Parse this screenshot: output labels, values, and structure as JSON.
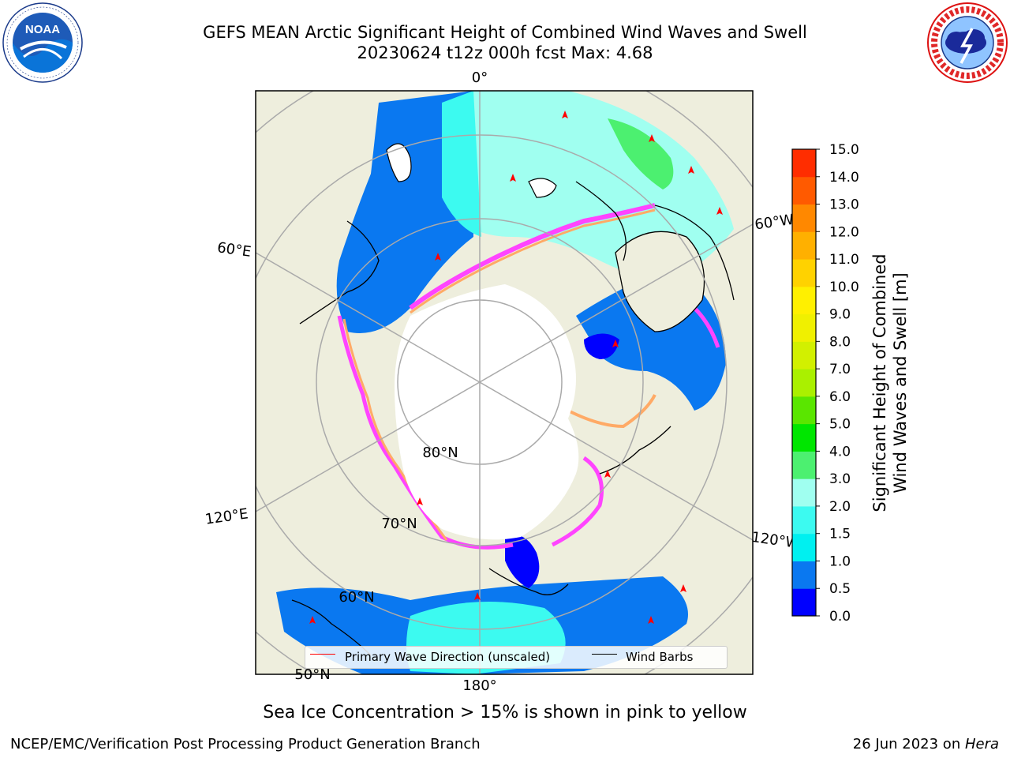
{
  "header": {
    "title_line1": "GEFS MEAN Arctic Significant Height of Combined Wind Waves and Swell",
    "title_line2": "20230624 t12z 000h fcst   Max: 4.68"
  },
  "logos": {
    "noaa": {
      "text": "NOAA",
      "ring_text": "NATIONAL OCEANIC AND ATMOSPHERIC ADMINISTRATION · U.S. DEPARTMENT OF COMMERCE"
    },
    "nws": {
      "ring_text": "NATIONAL WEATHER SERVICE"
    }
  },
  "map": {
    "projection": "north-polar-stereographic",
    "longitude_labels": [
      "0°",
      "60°E",
      "120°E",
      "180°",
      "120°W",
      "60°W"
    ],
    "latitude_labels": [
      "80°N",
      "70°N",
      "60°N",
      "50°N"
    ],
    "colors": {
      "land": "#eeeedd",
      "ice_free_unknown": "#ffffff",
      "graticule": "#aaaaaa",
      "coast": "#000000",
      "wave_arrow": "#ff0000"
    }
  },
  "legend": {
    "primary_wave_label": "Primary Wave Direction (unscaled)",
    "primary_wave_color": "#ff0000",
    "wind_barbs_label": "Wind Barbs",
    "wind_barbs_color": "#000000"
  },
  "colorbar": {
    "title_line1": "Significant Height of Combined",
    "title_line2": "Wind Waves and Swell [m]",
    "ticks": [
      "0.0",
      "0.5",
      "1.0",
      "1.5",
      "2.0",
      "3.0",
      "4.0",
      "5.0",
      "6.0",
      "7.0",
      "8.0",
      "9.0",
      "10.0",
      "11.0",
      "12.0",
      "13.0",
      "14.0",
      "15.0"
    ],
    "bin_colors": [
      "#0000ff",
      "#0a78f0",
      "#00f0f0",
      "#3cfaf0",
      "#a0fff0",
      "#4cf070",
      "#00e600",
      "#5ae600",
      "#aaf000",
      "#d2f000",
      "#f0f000",
      "#fff000",
      "#ffd200",
      "#ffb000",
      "#ff8800",
      "#ff5a00",
      "#ff2d00"
    ]
  },
  "caption": "Sea Ice Concentration > 15% is shown in pink to yellow",
  "footer": {
    "left": "NCEP/EMC/Verification Post Processing Product Generation Branch",
    "right_date": "26 Jun 2023 on ",
    "right_host": "Hera"
  }
}
